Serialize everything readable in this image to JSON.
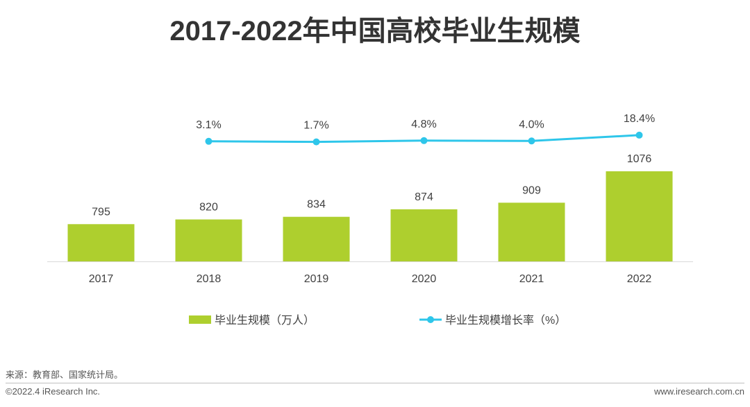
{
  "chart_data": {
    "type": "bar+line",
    "title": "2017-2022年中国高校毕业生规模",
    "categories": [
      "2017",
      "2018",
      "2019",
      "2020",
      "2021",
      "2022"
    ],
    "series": [
      {
        "name": "毕业生规模（万人）",
        "type": "bar",
        "color": "#aecf2e",
        "values": [
          795,
          820,
          834,
          874,
          909,
          1076
        ],
        "labels": [
          "795",
          "820",
          "834",
          "874",
          "909",
          "1076"
        ]
      },
      {
        "name": "毕业生规模增长率（%）",
        "type": "line",
        "color": "#2ec6ea",
        "x": [
          "2018",
          "2019",
          "2020",
          "2021",
          "2022"
        ],
        "values": [
          3.1,
          1.7,
          4.8,
          4.0,
          18.4
        ],
        "labels": [
          "3.1%",
          "1.7%",
          "4.8%",
          "4.0%",
          "18.4%"
        ]
      }
    ],
    "legend_position": "bottom"
  },
  "footer": {
    "source": "来源：教育部、国家统计局。",
    "copyright": "©2022.4 iResearch Inc.",
    "website": "www.iresearch.com.cn"
  }
}
